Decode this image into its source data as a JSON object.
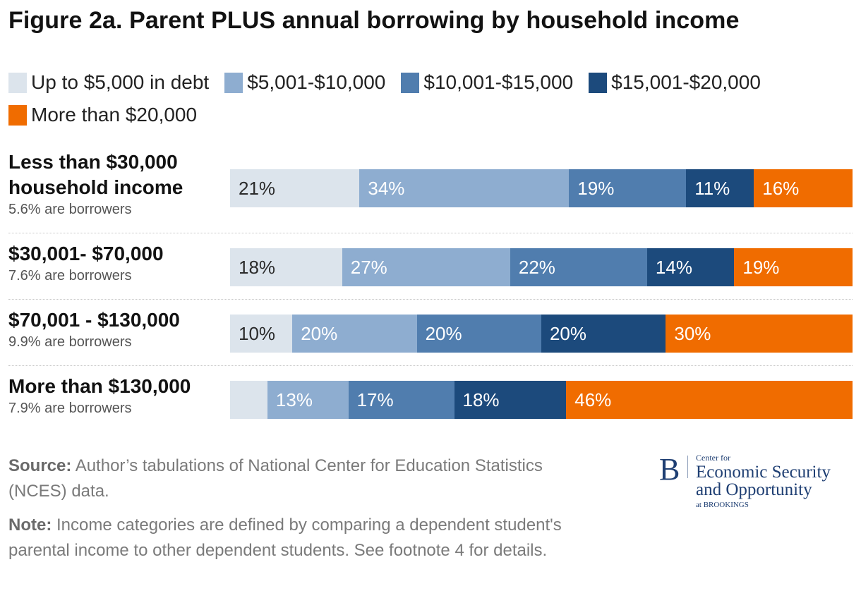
{
  "title": "Figure 2a. Parent PLUS annual borrowing by household income",
  "colors": {
    "up_to_5000": "#dce4ec",
    "5001_10000": "#8eadd0",
    "10001_15000": "#507dae",
    "15001_20000": "#1c4a7c",
    "more_than_20000": "#f06c00"
  },
  "chart_data": {
    "type": "bar",
    "orientation": "horizontal",
    "stacked": true,
    "normalized_percent": true,
    "title": "Figure 2a. Parent PLUS annual borrowing by household income",
    "legend_placement": "top",
    "categories": [
      "Less than $30,000 household income",
      "$30,001- $70,000",
      "$70,001 - $130,000",
      "More than $130,000"
    ],
    "category_notes": [
      "5.6% are borrowers",
      "7.6% are borrowers",
      "9.9% are borrowers",
      "7.9% are borrowers"
    ],
    "series": [
      {
        "name": "Up to $5,000 in debt",
        "values": [
          21,
          18,
          10,
          6
        ],
        "labels": [
          "21%",
          "18%",
          "10%",
          ""
        ],
        "color": "#dce4ec"
      },
      {
        "name": "$5,001-$10,000",
        "values": [
          34,
          27,
          20,
          13
        ],
        "labels": [
          "34%",
          "27%",
          "20%",
          "13%"
        ],
        "color": "#8eadd0"
      },
      {
        "name": "$10,001-$15,000",
        "values": [
          19,
          22,
          20,
          17
        ],
        "labels": [
          "19%",
          "22%",
          "20%",
          "17%"
        ],
        "color": "#507dae"
      },
      {
        "name": "$15,001-$20,000",
        "values": [
          11,
          14,
          20,
          18
        ],
        "labels": [
          "11%",
          "14%",
          "20%",
          "18%"
        ],
        "color": "#1c4a7c"
      },
      {
        "name": "More than $20,000",
        "values": [
          16,
          19,
          30,
          46
        ],
        "labels": [
          "16%",
          "19%",
          "30%",
          "46%"
        ],
        "color": "#f06c00"
      }
    ]
  },
  "rows": [
    {
      "name_line1": "Less than $30,000",
      "name_line2": "household income",
      "note": "5.6% are borrowers"
    },
    {
      "name_line1": "$30,001- $70,000",
      "note": "7.6% are borrowers"
    },
    {
      "name_line1": "$70,001 - $130,000",
      "note": "9.9% are borrowers"
    },
    {
      "name_line1": "More than $130,000",
      "note": "7.9% are borrowers"
    }
  ],
  "footer": {
    "source_label": "Source:",
    "source_text": "Author’s tabulations of National Center for Education Statistics (NCES) data.",
    "note_label": "Note:",
    "note_text": "Income categories are defined by comparing a dependent student's parental income to other dependent students. See footnote 4 for details."
  },
  "logo": {
    "letter": "B",
    "small": "Center for",
    "line1": "Economic Security",
    "line2": "and Opportunity",
    "tiny": "at BROOKINGS"
  }
}
